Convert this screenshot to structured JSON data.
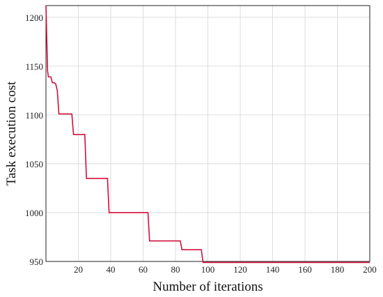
{
  "chart_data": {
    "type": "line",
    "xlabel": "Number of iterations",
    "ylabel": "Task execution cost",
    "xlim": [
      0,
      200
    ],
    "ylim": [
      950,
      1212
    ],
    "x_ticks": [
      20,
      40,
      60,
      80,
      100,
      120,
      140,
      160,
      180,
      200
    ],
    "y_ticks": [
      950,
      1000,
      1050,
      1100,
      1150,
      1200
    ],
    "grid": true,
    "line_color": "#d0103a",
    "series": [
      {
        "x": [
          0,
          1,
          1.5,
          2,
          3,
          4,
          5,
          6,
          7,
          8,
          9,
          10,
          11,
          12,
          13,
          14,
          15,
          16,
          17,
          18,
          19,
          20,
          21,
          22,
          23,
          24,
          25,
          26,
          30,
          35,
          38,
          39,
          40,
          45,
          50,
          55,
          60,
          62,
          63,
          64,
          70,
          75,
          80,
          82,
          83,
          84,
          90,
          95,
          96,
          97,
          100,
          120,
          140,
          160,
          180,
          200
        ],
        "y": [
          1212,
          1145,
          1139,
          1139,
          1139,
          1133,
          1133,
          1132,
          1125,
          1101,
          1101,
          1101,
          1101,
          1101,
          1101,
          1101,
          1101,
          1101,
          1080,
          1080,
          1080,
          1080,
          1080,
          1080,
          1080,
          1080,
          1035,
          1035,
          1035,
          1035,
          1035,
          1000,
          1000,
          1000,
          1000,
          1000,
          1000,
          1000,
          1000,
          971,
          971,
          971,
          971,
          971,
          971,
          962,
          962,
          962,
          962,
          949,
          949,
          949,
          949,
          949,
          949,
          949
        ]
      }
    ]
  }
}
